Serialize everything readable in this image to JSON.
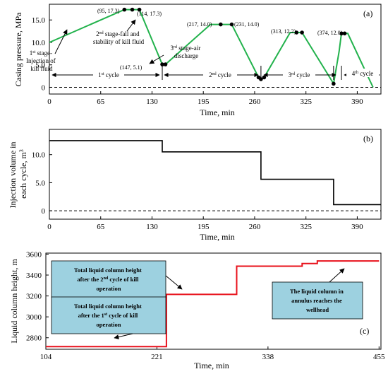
{
  "chart_data": [
    {
      "panel_label": "(a)",
      "type": "line",
      "xlabel": "Time, min",
      "ylabel": "Casing pressure, MPa",
      "xlim": [
        0,
        420
      ],
      "ylim": [
        -1.5,
        18.5
      ],
      "xticks": [
        0,
        65,
        130,
        195,
        260,
        325,
        390
      ],
      "yticks": [
        "0",
        "5.0",
        "10.0",
        "15.0"
      ],
      "ytick_values": [
        0,
        5,
        10,
        15
      ],
      "series": [
        {
          "x": [
            0,
            95,
            114,
            143,
            147,
            204,
            217,
            231,
            265,
            268,
            272,
            305,
            313,
            320,
            360,
            367,
            370,
            374,
            378,
            410
          ],
          "y": [
            10.0,
            17.3,
            17.3,
            5.1,
            5.1,
            14.0,
            14.0,
            14.0,
            2.2,
            1.8,
            2.2,
            12.2,
            12.2,
            12.2,
            0.8,
            8.0,
            12.0,
            12.0,
            12.0,
            0
          ]
        }
      ],
      "zero_line": true,
      "points": [
        {
          "x": 95,
          "y": 17.3,
          "label": "(95, 17.3)"
        },
        {
          "x": 105,
          "y": 17.3,
          "label": ""
        },
        {
          "x": 114,
          "y": 17.3,
          "label": "(114, 17.3)"
        },
        {
          "x": 143,
          "y": 5.1,
          "label": ""
        },
        {
          "x": 147,
          "y": 5.1,
          "label": "(147, 5.1)"
        },
        {
          "x": 217,
          "y": 14.0,
          "label": "(217, 14.0)"
        },
        {
          "x": 231,
          "y": 14.0,
          "label": "(231, 14.0)"
        },
        {
          "x": 265,
          "y": 2.2,
          "label": ""
        },
        {
          "x": 268,
          "y": 1.8,
          "label": ""
        },
        {
          "x": 272,
          "y": 2.2,
          "label": ""
        },
        {
          "x": 313,
          "y": 12.2,
          "label": "(313, 12.2)"
        },
        {
          "x": 320,
          "y": 12.2,
          "label": ""
        },
        {
          "x": 360,
          "y": 0.8,
          "label": ""
        },
        {
          "x": 370,
          "y": 12.0,
          "label": ""
        },
        {
          "x": 374,
          "y": 12.0,
          "label": "(374, 12.0)"
        }
      ],
      "cycle_dividers": [
        143,
        268,
        360,
        370
      ],
      "cycles": [
        {
          "label_main": "1",
          "label_sup": "st",
          "label_rest": " cycle",
          "from": 0,
          "to": 143
        },
        {
          "label_main": "2",
          "label_sup": "nd",
          "label_rest": " cycle",
          "from": 143,
          "to": 268
        },
        {
          "label_main": "3",
          "label_sup": "rd",
          "label_rest": " cycle",
          "from": 268,
          "to": 360
        },
        {
          "label_main": "4",
          "label_sup": "th",
          "label_rest": " cycle",
          "from": 370,
          "to": 420
        }
      ],
      "stages": [
        {
          "l1a": "1",
          "l1sup": "st",
          "l1b": " stage-",
          "l2": "Injection of",
          "l3": "kill fluid"
        },
        {
          "l1a": "2",
          "l1sup": "nd",
          "l1b": " stage-fall and",
          "l2": "stability of kill fluid"
        },
        {
          "l1a": "3",
          "l1sup": "rd",
          "l1b": " stage-air",
          "l2": "discharge"
        }
      ]
    },
    {
      "panel_label": "(b)",
      "type": "line",
      "xlabel": "Time, min",
      "ylabel_l1": "Injection volume in",
      "ylabel_l2": "each cycle, m",
      "ylabel_sup": "3",
      "xlim": [
        0,
        420
      ],
      "ylim": [
        -1.5,
        14.5
      ],
      "xticks": [
        0,
        65,
        130,
        195,
        260,
        325,
        390
      ],
      "yticks": [
        "0",
        "5.0",
        "10.0"
      ],
      "ytick_values": [
        0,
        5,
        10
      ],
      "series": [
        {
          "step": true,
          "x": [
            0,
            143,
            143,
            268,
            268,
            360,
            360,
            420
          ],
          "y": [
            12.5,
            12.5,
            10.5,
            10.5,
            5.6,
            5.6,
            1.1,
            1.1
          ]
        }
      ],
      "zero_line": true
    },
    {
      "panel_label": "(c)",
      "type": "line",
      "xlabel": "Time, min",
      "ylabel": "Liquid column height, m",
      "xlim": [
        104,
        457
      ],
      "ylim": [
        2690,
        3610
      ],
      "xticks": [
        104,
        221,
        338,
        455
      ],
      "yticks": [
        "2800",
        "3000",
        "3200",
        "3400",
        "3600"
      ],
      "ytick_values": [
        2800,
        3000,
        3200,
        3400,
        3600
      ],
      "series": [
        {
          "step": true,
          "x": [
            104,
            231,
            231,
            305,
            305,
            374,
            374,
            390,
            390,
            455
          ],
          "y": [
            2715,
            2715,
            3215,
            3215,
            3485,
            3485,
            3510,
            3510,
            3535,
            3535
          ]
        }
      ],
      "callouts": [
        {
          "l1": "Total liquid column height",
          "l2a": "after the 2",
          "l2sup": "nd",
          "l2b": " cycle of kill",
          "l3": "operation"
        },
        {
          "l1": "Total liquid column height",
          "l2a": "after the 1",
          "l2sup": "st",
          "l2b": " cycle of kill",
          "l3": "operation"
        },
        {
          "l1": "The liquid column in",
          "l2": "annulus reaches the",
          "l3": "wellhead"
        }
      ]
    }
  ],
  "colors": {
    "green_line": "#22b24c",
    "red_line": "#e8111b",
    "callout_fill": "#9dd1e0",
    "dots": "#000000"
  }
}
